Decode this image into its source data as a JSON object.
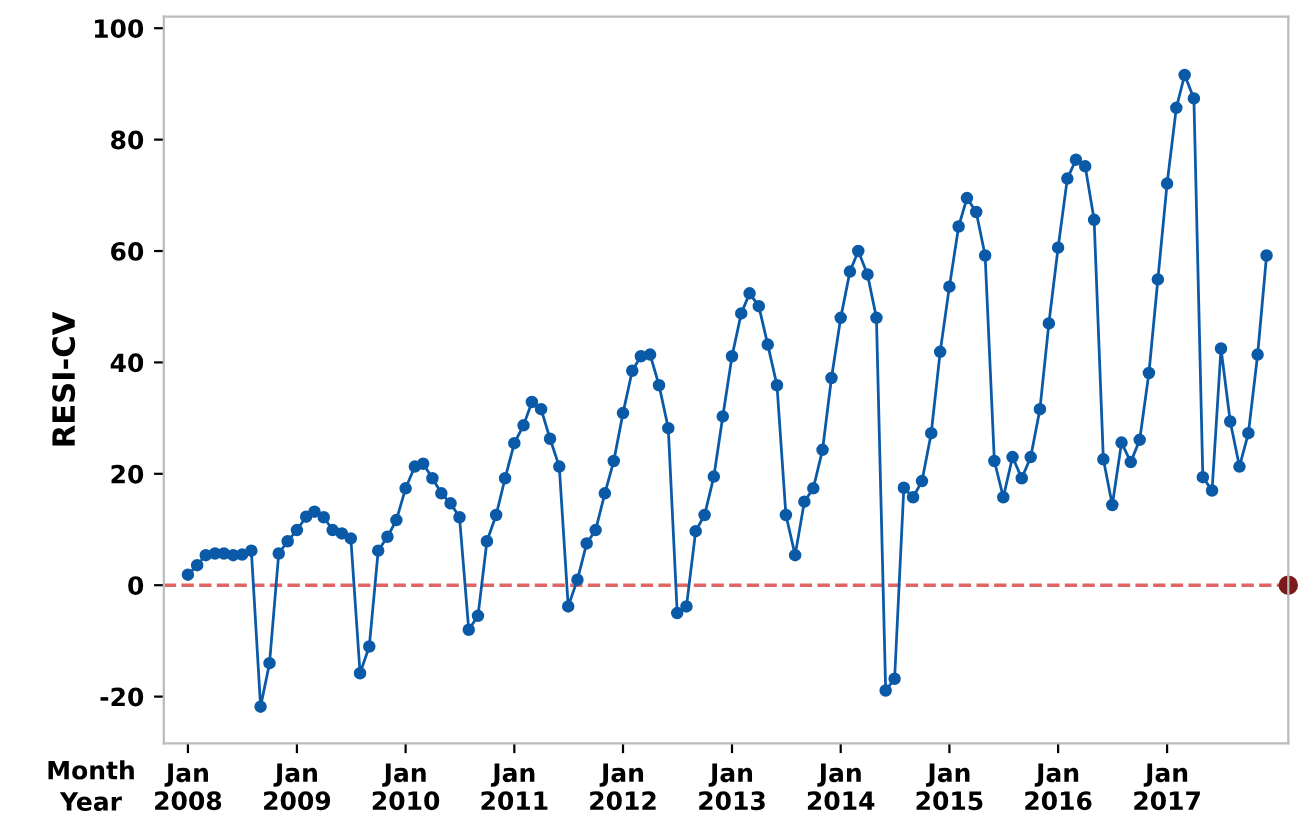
{
  "chart_data": {
    "type": "line",
    "ylabel": "RESI-CV",
    "annotations": [
      "Month",
      "Year"
    ],
    "x": [
      "2008-01",
      "2008-02",
      "2008-03",
      "2008-04",
      "2008-05",
      "2008-06",
      "2008-07",
      "2008-08",
      "2008-09",
      "2008-10",
      "2008-11",
      "2008-12",
      "2009-01",
      "2009-02",
      "2009-03",
      "2009-04",
      "2009-05",
      "2009-06",
      "2009-07",
      "2009-08",
      "2009-09",
      "2009-10",
      "2009-11",
      "2009-12",
      "2010-01",
      "2010-02",
      "2010-03",
      "2010-04",
      "2010-05",
      "2010-06",
      "2010-07",
      "2010-08",
      "2010-09",
      "2010-10",
      "2010-11",
      "2010-12",
      "2011-01",
      "2011-02",
      "2011-03",
      "2011-04",
      "2011-05",
      "2011-06",
      "2011-07",
      "2011-08",
      "2011-09",
      "2011-10",
      "2011-11",
      "2011-12",
      "2012-01",
      "2012-02",
      "2012-03",
      "2012-04",
      "2012-05",
      "2012-06",
      "2012-07",
      "2012-08",
      "2012-09",
      "2012-10",
      "2012-11",
      "2012-12",
      "2013-01",
      "2013-02",
      "2013-03",
      "2013-04",
      "2013-05",
      "2013-06",
      "2013-07",
      "2013-08",
      "2013-09",
      "2013-10",
      "2013-11",
      "2013-12",
      "2014-01",
      "2014-02",
      "2014-03",
      "2014-04",
      "2014-05",
      "2014-06",
      "2014-07",
      "2014-08",
      "2014-09",
      "2014-10",
      "2014-11",
      "2014-12",
      "2015-01",
      "2015-02",
      "2015-03",
      "2015-04",
      "2015-05",
      "2015-06",
      "2015-07",
      "2015-08",
      "2015-09",
      "2015-10",
      "2015-11",
      "2015-12",
      "2016-01",
      "2016-02",
      "2016-03",
      "2016-04",
      "2016-05",
      "2016-06",
      "2016-07",
      "2016-08",
      "2016-09",
      "2016-10",
      "2016-11",
      "2016-12",
      "2017-01",
      "2017-02",
      "2017-03",
      "2017-04",
      "2017-05",
      "2017-06",
      "2017-07",
      "2017-08",
      "2017-09",
      "2017-10",
      "2017-11",
      "2017-12"
    ],
    "series": [
      {
        "color": "#0b5aa8",
        "values": [
          1.9,
          3.6,
          5.4,
          5.7,
          5.7,
          5.4,
          5.5,
          6.2,
          -21.8,
          -14.0,
          5.7,
          7.9,
          9.9,
          12.3,
          13.2,
          12.2,
          9.9,
          9.3,
          8.4,
          -15.8,
          -11.0,
          6.2,
          8.7,
          11.7,
          17.4,
          21.3,
          21.8,
          19.2,
          16.5,
          14.7,
          12.2,
          -8.0,
          -5.5,
          7.9,
          12.6,
          19.2,
          25.5,
          28.7,
          32.9,
          31.6,
          26.3,
          21.3,
          -3.8,
          1.0,
          7.5,
          9.9,
          16.5,
          22.3,
          30.9,
          38.5,
          41.1,
          41.4,
          35.9,
          28.2,
          -5.0,
          -3.8,
          9.7,
          12.6,
          19.5,
          30.3,
          41.1,
          48.8,
          52.4,
          50.1,
          43.2,
          35.9,
          12.6,
          5.4,
          15.0,
          17.4,
          24.3,
          37.2,
          48.0,
          56.3,
          60.0,
          55.8,
          48.0,
          -18.9,
          -16.8,
          17.5,
          15.8,
          18.7,
          27.3,
          41.9,
          53.6,
          64.4,
          69.5,
          67.0,
          59.2,
          22.3,
          15.8,
          23.0,
          19.2,
          23.0,
          31.6,
          47.0,
          60.6,
          73.0,
          76.4,
          75.2,
          65.6,
          22.6,
          14.4,
          25.6,
          22.1,
          26.1,
          38.1,
          54.9,
          72.1,
          85.7,
          91.6,
          87.4,
          19.4,
          17.0,
          42.5,
          29.4,
          21.3,
          27.3,
          41.4,
          59.2
        ]
      }
    ],
    "xlim": [
      "2007-10-12",
      "2018-02-12"
    ],
    "xticks": [
      {
        "value": "2008-01",
        "label": "Jan\n2008"
      },
      {
        "value": "2009-01",
        "label": "Jan\n2009"
      },
      {
        "value": "2010-01",
        "label": "Jan\n2010"
      },
      {
        "value": "2011-01",
        "label": "Jan\n2011"
      },
      {
        "value": "2012-01",
        "label": "Jan\n2012"
      },
      {
        "value": "2013-01",
        "label": "Jan\n2013"
      },
      {
        "value": "2014-01",
        "label": "Jan\n2014"
      },
      {
        "value": "2015-01",
        "label": "Jan\n2015"
      },
      {
        "value": "2016-01",
        "label": "Jan\n2016"
      },
      {
        "value": "2017-01",
        "label": "Jan\n2017"
      }
    ],
    "ylim": [
      -28.4,
      102.1
    ],
    "yticks": [
      -20,
      0,
      20,
      40,
      60,
      80,
      100
    ],
    "ref_lines": [
      {
        "axis": "y",
        "value": 0,
        "color": "#e06666",
        "line_style": "dashed"
      }
    ],
    "grid": false,
    "legend": false,
    "marker": "circle",
    "line_style": "solid"
  }
}
